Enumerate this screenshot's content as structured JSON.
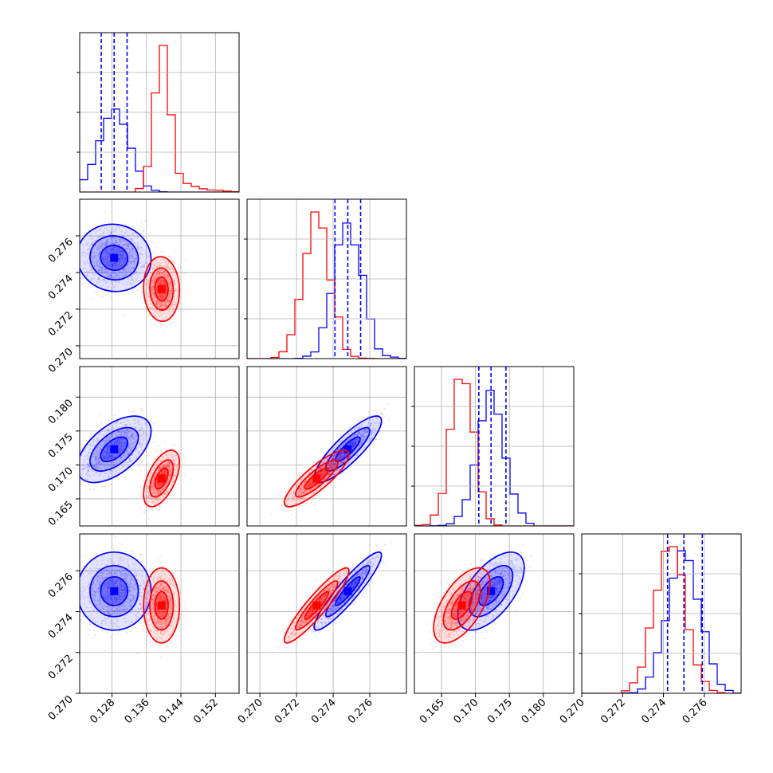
{
  "chart_data": {
    "type": "corner",
    "title": "",
    "parameters": [
      {
        "index": 0,
        "range": [
          0.1205,
          0.1575
        ],
        "ticks": [
          "0.128",
          "0.136",
          "0.144",
          "0.152"
        ],
        "tick_values": [
          0.128,
          0.136,
          0.144,
          0.152
        ]
      },
      {
        "index": 1,
        "range": [
          0.2693,
          0.278
        ],
        "ticks": [
          "0.270",
          "0.272",
          "0.274",
          "0.276"
        ],
        "tick_values": [
          0.27,
          0.272,
          0.274,
          0.276
        ]
      },
      {
        "index": 2,
        "range": [
          0.161,
          0.1845
        ],
        "ticks": [
          "0.165",
          "0.170",
          "0.175",
          "0.180"
        ],
        "tick_values": [
          0.165,
          0.17,
          0.175,
          0.18
        ]
      },
      {
        "index": 3,
        "range": [
          0.27,
          0.2778
        ],
        "ticks": [
          "0.270",
          "0.272",
          "0.274",
          "0.276"
        ],
        "tick_values": [
          0.27,
          0.272,
          0.274,
          0.276
        ]
      }
    ],
    "series": [
      {
        "color": "#0000ff",
        "mean": [
          0.1285,
          0.2748,
          0.1723,
          0.275
        ],
        "sd": [
          0.0035,
          0.00075,
          0.002,
          0.00078
        ],
        "quantiles": [
          [
            0.1255,
            0.1285,
            0.1315
          ],
          [
            0.2741,
            0.2748,
            0.2755
          ],
          [
            0.1705,
            0.1723,
            0.1745
          ],
          [
            0.2742,
            0.275,
            0.2759
          ]
        ]
      },
      {
        "color": "#ff0000",
        "mean": [
          0.1395,
          0.2731,
          0.168,
          0.2743
        ],
        "sd": [
          0.0017,
          0.00072,
          0.0017,
          0.00075
        ]
      }
    ],
    "quantile_lines": "dashed, blue series only",
    "grid": true,
    "scatter_alpha": "light",
    "contours": 3
  }
}
